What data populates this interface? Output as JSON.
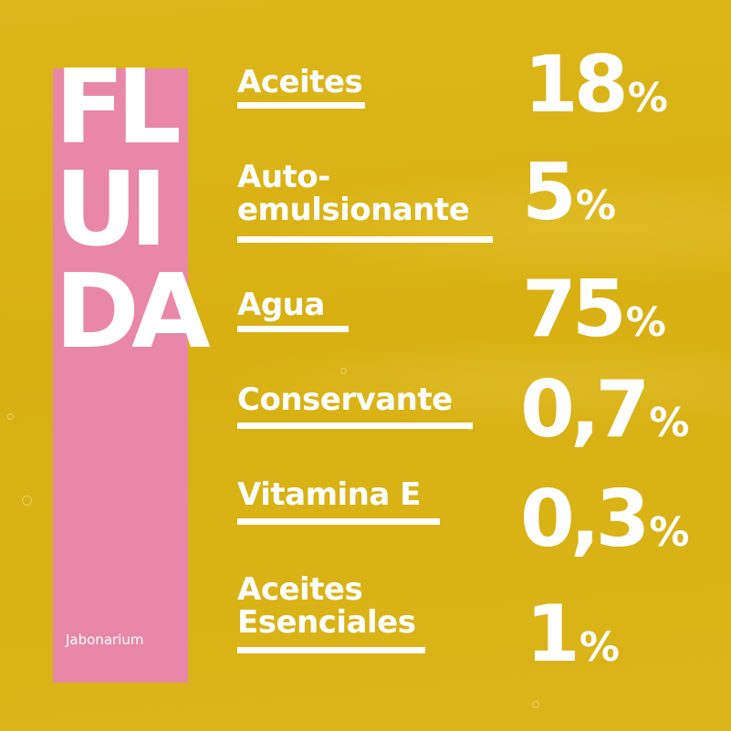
{
  "title_lines": [
    "FL",
    "UI",
    "DA"
  ],
  "brand": "Jabonarium",
  "ingredients": [
    {
      "name": "Aceites",
      "percent": "18",
      "unit": "%"
    },
    {
      "name_line1": "Auto-",
      "name_line2": "emulsionante",
      "percent": "5",
      "unit": "%"
    },
    {
      "name": "Agua",
      "percent": "75",
      "unit": "%"
    },
    {
      "name": "Conservante",
      "percent": "0,7",
      "unit": "%"
    },
    {
      "name": "Vitamina E",
      "percent": "0,3",
      "unit": "%"
    },
    {
      "name_line1": "Aceites",
      "name_line2": "Esenciales",
      "percent": "1",
      "unit": "%"
    }
  ],
  "colors": {
    "background": "#dbb317",
    "accent_pink": "#e887a8",
    "text": "#ffffff"
  }
}
